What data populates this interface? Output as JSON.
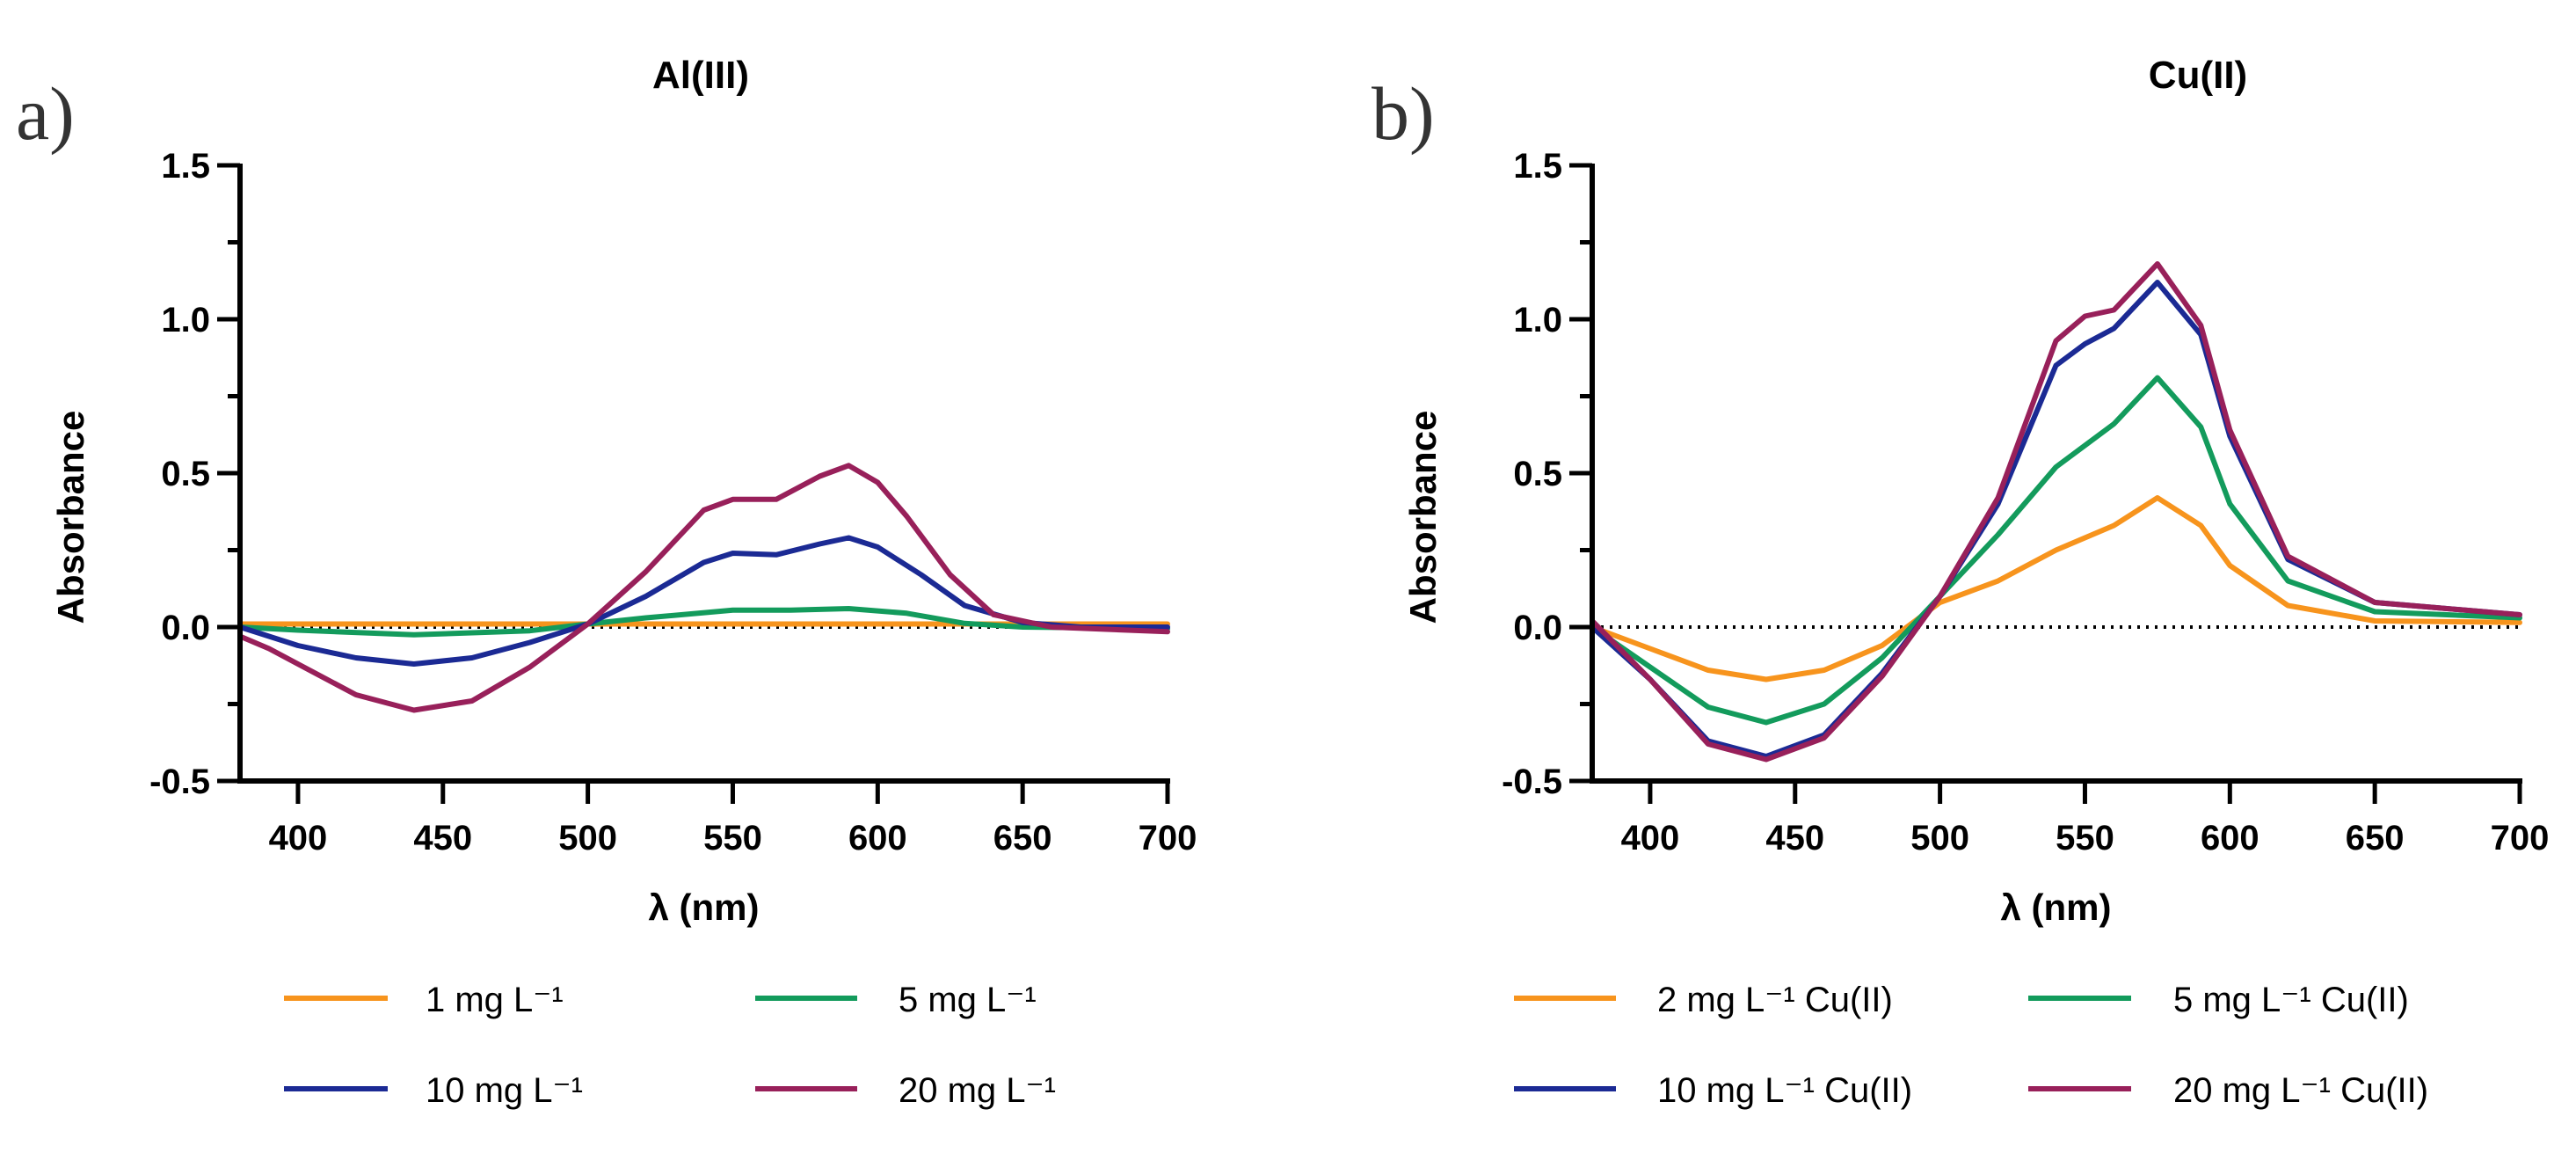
{
  "chart_data": [
    {
      "type": "line",
      "panel_label": "a)",
      "title": "Al(III)",
      "xlabel": "λ (nm)",
      "ylabel": "Absorbance",
      "xlim": [
        380,
        700
      ],
      "ylim": [
        -0.5,
        1.5
      ],
      "xticks": [
        400,
        450,
        500,
        550,
        600,
        650,
        700
      ],
      "yticks": [
        -0.5,
        0.0,
        0.5,
        1.0,
        1.5
      ],
      "ytick_labels": [
        "-0.5",
        "0.0",
        "0.5",
        "1.0",
        "1.5"
      ],
      "grid": false,
      "zero_line": "dotted",
      "legend_placement": "bottom",
      "series": [
        {
          "name": "1 mg L⁻¹",
          "color": "#f7941d",
          "x": [
            380,
            450,
            500,
            550,
            600,
            650,
            700
          ],
          "y": [
            0.01,
            0.01,
            0.01,
            0.01,
            0.01,
            0.01,
            0.01
          ]
        },
        {
          "name": "5 mg L⁻¹",
          "color": "#139b5c",
          "x": [
            380,
            400,
            440,
            480,
            500,
            520,
            550,
            570,
            590,
            610,
            630,
            650,
            700
          ],
          "y": [
            0,
            -0.01,
            -0.025,
            -0.012,
            0.01,
            0.03,
            0.055,
            0.055,
            0.06,
            0.045,
            0.012,
            0,
            -0.005
          ]
        },
        {
          "name": "10 mg L⁻¹",
          "color": "#1b2a94",
          "x": [
            380,
            400,
            420,
            440,
            460,
            480,
            500,
            520,
            540,
            550,
            565,
            580,
            590,
            600,
            615,
            630,
            650,
            670,
            700
          ],
          "y": [
            0,
            -0.06,
            -0.1,
            -0.12,
            -0.1,
            -0.05,
            0.01,
            0.1,
            0.21,
            0.24,
            0.235,
            0.27,
            0.29,
            0.26,
            0.17,
            0.07,
            0.015,
            0,
            0
          ]
        },
        {
          "name": "20 mg L⁻¹",
          "color": "#98205a",
          "x": [
            380,
            390,
            400,
            420,
            440,
            460,
            480,
            500,
            520,
            540,
            550,
            565,
            580,
            590,
            600,
            610,
            625,
            640,
            660,
            700
          ],
          "y": [
            -0.03,
            -0.07,
            -0.12,
            -0.22,
            -0.27,
            -0.24,
            -0.13,
            0.01,
            0.18,
            0.38,
            0.415,
            0.415,
            0.49,
            0.525,
            0.47,
            0.36,
            0.17,
            0.04,
            0,
            -0.015
          ]
        }
      ]
    },
    {
      "type": "line",
      "panel_label": "b)",
      "title": "Cu(II)",
      "xlabel": "λ (nm)",
      "ylabel": "Absorbance",
      "xlim": [
        380,
        700
      ],
      "ylim": [
        -0.5,
        1.5
      ],
      "xticks": [
        400,
        450,
        500,
        550,
        600,
        650,
        700
      ],
      "yticks": [
        -0.5,
        0.0,
        0.5,
        1.0,
        1.5
      ],
      "ytick_labels": [
        "-0.5",
        "0.0",
        "0.5",
        "1.0",
        "1.5"
      ],
      "grid": false,
      "zero_line": "dotted",
      "legend_placement": "bottom",
      "series": [
        {
          "name": "2 mg L⁻¹ Cu(II)",
          "color": "#f7941d",
          "x": [
            380,
            400,
            420,
            440,
            460,
            480,
            500,
            520,
            540,
            560,
            575,
            590,
            600,
            620,
            650,
            700
          ],
          "y": [
            0,
            -0.07,
            -0.14,
            -0.17,
            -0.14,
            -0.06,
            0.08,
            0.15,
            0.25,
            0.33,
            0.42,
            0.33,
            0.2,
            0.07,
            0.02,
            0.015
          ]
        },
        {
          "name": "5 mg L⁻¹ Cu(II)",
          "color": "#139b5c",
          "x": [
            380,
            400,
            420,
            440,
            460,
            480,
            500,
            520,
            540,
            560,
            575,
            590,
            600,
            620,
            650,
            700
          ],
          "y": [
            0,
            -0.13,
            -0.26,
            -0.31,
            -0.25,
            -0.1,
            0.1,
            0.3,
            0.52,
            0.66,
            0.81,
            0.65,
            0.4,
            0.15,
            0.05,
            0.03
          ]
        },
        {
          "name": "10 mg L⁻¹ Cu(II)",
          "color": "#1b2a94",
          "x": [
            380,
            400,
            420,
            440,
            460,
            480,
            500,
            520,
            540,
            550,
            560,
            575,
            590,
            600,
            620,
            650,
            700
          ],
          "y": [
            0,
            -0.17,
            -0.37,
            -0.42,
            -0.35,
            -0.15,
            0.1,
            0.4,
            0.85,
            0.92,
            0.97,
            1.12,
            0.95,
            0.62,
            0.22,
            0.08,
            0.04
          ]
        },
        {
          "name": "20 mg L⁻¹ Cu(II)",
          "color": "#98205a",
          "x": [
            380,
            400,
            420,
            440,
            460,
            480,
            500,
            520,
            540,
            550,
            560,
            575,
            590,
            600,
            620,
            650,
            700
          ],
          "y": [
            0.02,
            -0.17,
            -0.38,
            -0.43,
            -0.36,
            -0.16,
            0.1,
            0.42,
            0.93,
            1.01,
            1.03,
            1.18,
            0.98,
            0.64,
            0.23,
            0.08,
            0.04
          ]
        }
      ]
    }
  ]
}
